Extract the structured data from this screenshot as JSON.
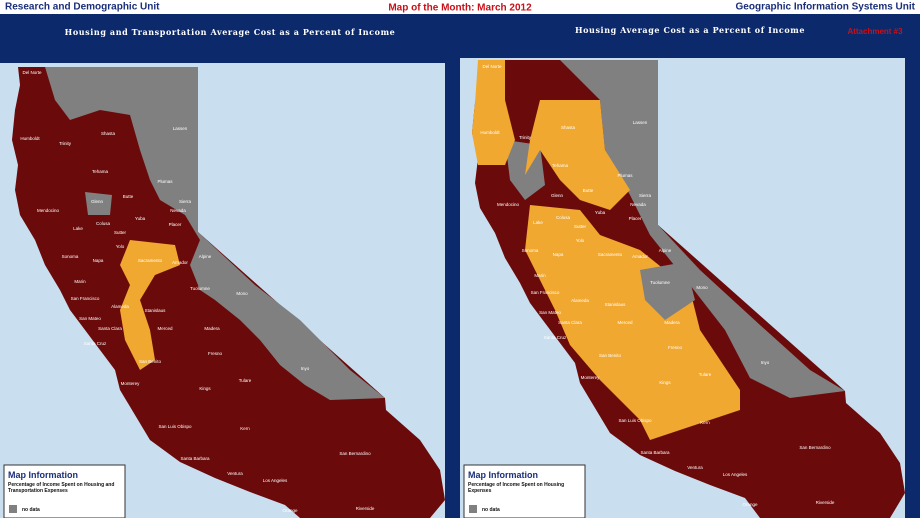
{
  "header": {
    "left": "Research and Demographic Unit",
    "center": "Map of the Month: March 2012",
    "right": "Geographic Information Systems Unit"
  },
  "maps": [
    {
      "title": "Housing and Transportation Average Cost as a Percent of Income",
      "counties": [
        "Del Norte",
        "Humboldt",
        "Trinity",
        "Shasta",
        "Lassen",
        "Tehama",
        "Plumas",
        "Mendocino",
        "Glenn",
        "Butte",
        "Sierra",
        "Nevada",
        "Lake",
        "Colusa",
        "Sutter",
        "Yuba",
        "Placer",
        "Sonoma",
        "Napa",
        "Yolo",
        "Sacramento",
        "Amador",
        "Alpine",
        "Marin",
        "San Francisco",
        "San Mateo",
        "Alameda",
        "Stanislaus",
        "Tuolumne",
        "Mono",
        "Santa Clara",
        "Merced",
        "Madera",
        "Santa Cruz",
        "San Benito",
        "Fresno",
        "Monterey",
        "Kings",
        "Tulare",
        "Inyo",
        "Kern",
        "San Luis Obispo",
        "Santa Barbara",
        "Ventura",
        "Los Angeles",
        "San Bernardino",
        "Riverside",
        "Orange"
      ],
      "legend": {
        "title": "Map Information",
        "description": "Percentage of Income Spent on Housing and Transportation Expenses",
        "no_data": "no data"
      }
    },
    {
      "title": "Housing Average Cost as a Percent of Income",
      "attachment": "Attachment #3",
      "counties": [
        "Del Norte",
        "Humboldt",
        "Trinity",
        "Shasta",
        "Lassen",
        "Tehama",
        "Plumas",
        "Mendocino",
        "Glenn",
        "Butte",
        "Sierra",
        "Nevada",
        "Lake",
        "Colusa",
        "Sutter",
        "Yuba",
        "Placer",
        "Sonoma",
        "Napa",
        "Yolo",
        "Sacramento",
        "Amador",
        "Alpine",
        "Marin",
        "San Francisco",
        "San Mateo",
        "Alameda",
        "Stanislaus",
        "Tuolumne",
        "Mono",
        "Santa Clara",
        "Merced",
        "Madera",
        "Santa Cruz",
        "San Benito",
        "Fresno",
        "Monterey",
        "Kings",
        "Tulare",
        "Inyo",
        "Kern",
        "San Luis Obispo",
        "Santa Barbara",
        "Ventura",
        "Los Angeles",
        "San Bernardino",
        "Riverside",
        "Orange"
      ],
      "legend": {
        "title": "Map Information",
        "description": "Percentage of Income Spent on Housing Expenses",
        "no_data": "no data"
      }
    }
  ]
}
